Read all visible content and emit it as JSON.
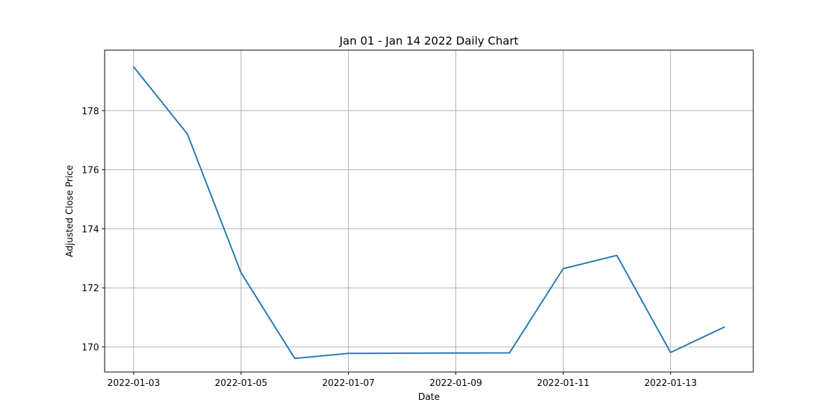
{
  "chart_data": {
    "type": "line",
    "title": "Jan 01 - Jan 14 2022 Daily Chart",
    "xlabel": "Date",
    "ylabel": "Adjusted Close Price",
    "grid": true,
    "legend": "none",
    "x_ticks": [
      "2022-01-03",
      "2022-01-05",
      "2022-01-07",
      "2022-01-09",
      "2022-01-11",
      "2022-01-13"
    ],
    "y_ticks": [
      170,
      172,
      174,
      176,
      178
    ],
    "xlim": [
      "2022-01-02T11:00",
      "2022-01-14T13:00"
    ],
    "ylim": [
      169.15,
      180.05
    ],
    "series": [
      {
        "color": "#1f77b4",
        "x": [
          "2022-01-03",
          "2022-01-04",
          "2022-01-05",
          "2022-01-06",
          "2022-01-07",
          "2022-01-10",
          "2022-01-11",
          "2022-01-12",
          "2022-01-13",
          "2022-01-14"
        ],
        "y": [
          179.48,
          177.21,
          172.51,
          169.61,
          169.78,
          169.8,
          172.65,
          173.1,
          169.81,
          170.67
        ]
      }
    ]
  }
}
